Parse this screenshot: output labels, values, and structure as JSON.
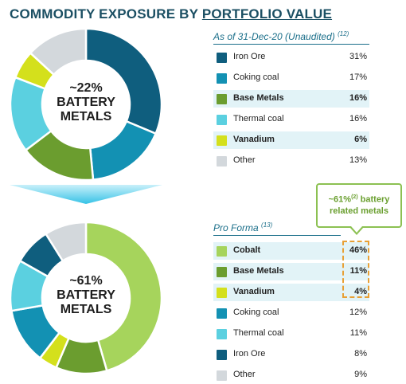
{
  "title": {
    "part1": "COMMODITY EXPOSURE BY ",
    "part2": "PORTFOLIO VALUE"
  },
  "chart_data": [
    {
      "type": "pie",
      "title": "",
      "center_label": {
        "pct": "~22%",
        "line1": "BATTERY",
        "line2": "METALS"
      },
      "table_heading": "As of 31-Dec-20 (Unaudited)",
      "heading_note": "(12)",
      "slices": [
        {
          "label": "Iron Ore",
          "display": "31%",
          "value": 31,
          "color": "#0f5e7e",
          "highlight": false,
          "bold": false
        },
        {
          "label": "Coking coal",
          "display": "17%",
          "value": 17,
          "color": "#1391b3",
          "highlight": false,
          "bold": false
        },
        {
          "label": "Base Metals",
          "display": "16%",
          "value": 16,
          "color": "#6b9d2f",
          "highlight": true,
          "bold": true
        },
        {
          "label": "Thermal coal",
          "display": "16%",
          "value": 16,
          "color": "#5bd0e0",
          "highlight": false,
          "bold": false
        },
        {
          "label": "Vanadium",
          "display": "6%",
          "value": 6,
          "color": "#d4e01c",
          "highlight": true,
          "bold": true
        },
        {
          "label": "Other",
          "display": "13%",
          "value": 13,
          "color": "#d3d8dc",
          "highlight": false,
          "bold": false
        }
      ]
    },
    {
      "type": "pie",
      "title": "",
      "center_label": {
        "pct": "~61%",
        "line1": "BATTERY",
        "line2": "METALS"
      },
      "table_heading": "Pro Forma",
      "heading_note": "(13)",
      "slices": [
        {
          "label": "Cobalt",
          "display": "46%",
          "value": 46,
          "color": "#a6d45c",
          "highlight": true,
          "bold": true
        },
        {
          "label": "Base Metals",
          "display": "11%",
          "value": 11,
          "color": "#6b9d2f",
          "highlight": true,
          "bold": true
        },
        {
          "label": "Vanadium",
          "display": "4%",
          "value": 4,
          "color": "#d4e01c",
          "highlight": true,
          "bold": true
        },
        {
          "label": "Coking coal",
          "display": "12%",
          "value": 12,
          "color": "#1391b3",
          "highlight": false,
          "bold": false
        },
        {
          "label": "Thermal coal",
          "display": "11%",
          "value": 11,
          "color": "#5bd0e0",
          "highlight": false,
          "bold": false
        },
        {
          "label": "Iron Ore",
          "display": "8%",
          "value": 8,
          "color": "#0f5e7e",
          "highlight": false,
          "bold": false
        },
        {
          "label": "Other",
          "display": "9%",
          "value": 9,
          "color": "#d3d8dc",
          "highlight": false,
          "bold": false
        }
      ]
    }
  ],
  "callout": {
    "line1a": "~61%",
    "line1sup": "(2)",
    "line1b": " battery",
    "line2": "related metals"
  },
  "colors": {
    "title": "#1b4f63",
    "heading": "#1b6f8a",
    "callout": "#8cc152",
    "dashed_box": "#e8a035",
    "arrow": "#5fd0ea"
  }
}
